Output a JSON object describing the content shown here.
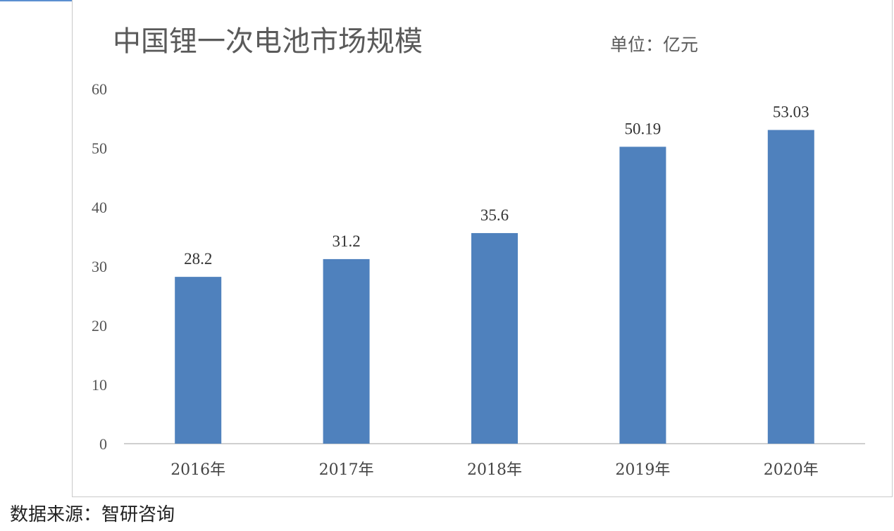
{
  "chart_data": {
    "type": "bar",
    "title": "中国锂一次电池市场规模",
    "unit_label": "单位：亿元",
    "categories": [
      "2016年",
      "2017年",
      "2018年",
      "2019年",
      "2020年"
    ],
    "values": [
      28.2,
      31.2,
      35.6,
      50.19,
      53.03
    ],
    "data_labels": [
      "28.2",
      "31.2",
      "35.6",
      "50.19",
      "53.03"
    ],
    "y_ticks": [
      "0",
      "10",
      "20",
      "30",
      "40",
      "50",
      "60"
    ],
    "ylim": [
      0,
      60
    ],
    "grid": false,
    "legend": "none",
    "bar_color": "#4f81bd"
  },
  "source": "数据来源：智研咨询"
}
